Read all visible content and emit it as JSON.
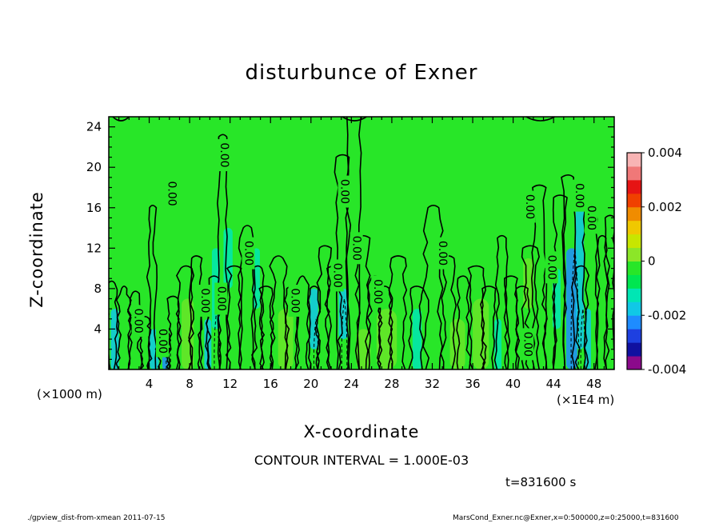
{
  "chart_data": {
    "type": "contour",
    "title": "disturbunce of Exner",
    "xlabel": "X-coordinate",
    "ylabel": "Z-coordinate",
    "x_unit_left": "(×1000 m)",
    "x_unit_right": "(×1E4 m)",
    "xlim": [
      0,
      50
    ],
    "ylim": [
      0,
      25
    ],
    "x_ticks": [
      4,
      8,
      12,
      16,
      20,
      24,
      28,
      32,
      36,
      40,
      44,
      48
    ],
    "y_ticks": [
      4,
      8,
      12,
      16,
      20,
      24
    ],
    "contour_interval_text": "CONTOUR INTERVAL = 1.000E-03",
    "time_text": "t=831600 s",
    "contour_labels": [
      {
        "text": "0.00",
        "x": 2.9,
        "z": 4.8
      },
      {
        "text": "0.00",
        "x": 5.3,
        "z": 2.8
      },
      {
        "text": "0.00",
        "x": 6.2,
        "z": 17.4
      },
      {
        "text": "0.00",
        "x": 9.5,
        "z": 6.8
      },
      {
        "text": "0.00",
        "x": 11.1,
        "z": 7.0
      },
      {
        "text": "0.00",
        "x": 11.4,
        "z": 21.2
      },
      {
        "text": "0.00",
        "x": 13.8,
        "z": 11.5
      },
      {
        "text": "0.00",
        "x": 18.4,
        "z": 6.8
      },
      {
        "text": "0.00",
        "x": 22.6,
        "z": 9.3
      },
      {
        "text": "0.00",
        "x": 23.3,
        "z": 17.6
      },
      {
        "text": "0.00",
        "x": 24.5,
        "z": 12.0
      },
      {
        "text": "0.00",
        "x": 26.6,
        "z": 7.7
      },
      {
        "text": "0.00",
        "x": 33.0,
        "z": 11.5
      },
      {
        "text": "0.00",
        "x": 41.4,
        "z": 2.5
      },
      {
        "text": "0.00",
        "x": 41.6,
        "z": 16.1
      },
      {
        "text": "0.00",
        "x": 43.8,
        "z": 10.1
      },
      {
        "text": "0.00",
        "x": 46.5,
        "z": 17.2
      },
      {
        "text": "0.00",
        "x": 47.7,
        "z": 15.0
      }
    ],
    "colorbar": {
      "min": -0.004,
      "max": 0.004,
      "tick_labels": [
        "0.004",
        "0.002",
        "0",
        "-0.002",
        "-0.004"
      ],
      "tick_values": [
        0.004,
        0.002,
        0,
        -0.002,
        -0.004
      ],
      "colors": [
        "#8b0a8b",
        "#1010a0",
        "#1e40e0",
        "#1e8cff",
        "#10c8e6",
        "#00e6b4",
        "#00e650",
        "#28e628",
        "#8ce628",
        "#c8e600",
        "#f0c800",
        "#f08c00",
        "#f04000",
        "#e61414",
        "#f07878",
        "#f8b4b4"
      ]
    },
    "field_dominant_level": "0",
    "background_color": "#28e628",
    "negative_patch_colors": [
      "#00e6b4",
      "#10c8e6",
      "#1e8cff"
    ],
    "positive_patch_color": "#8ce628"
  },
  "footer": {
    "left": "./gpview_dist-from-xmean   2011-07-15",
    "right": "MarsCond_Exner.nc@Exner,x=0:500000,z=0:25000,t=831600"
  }
}
